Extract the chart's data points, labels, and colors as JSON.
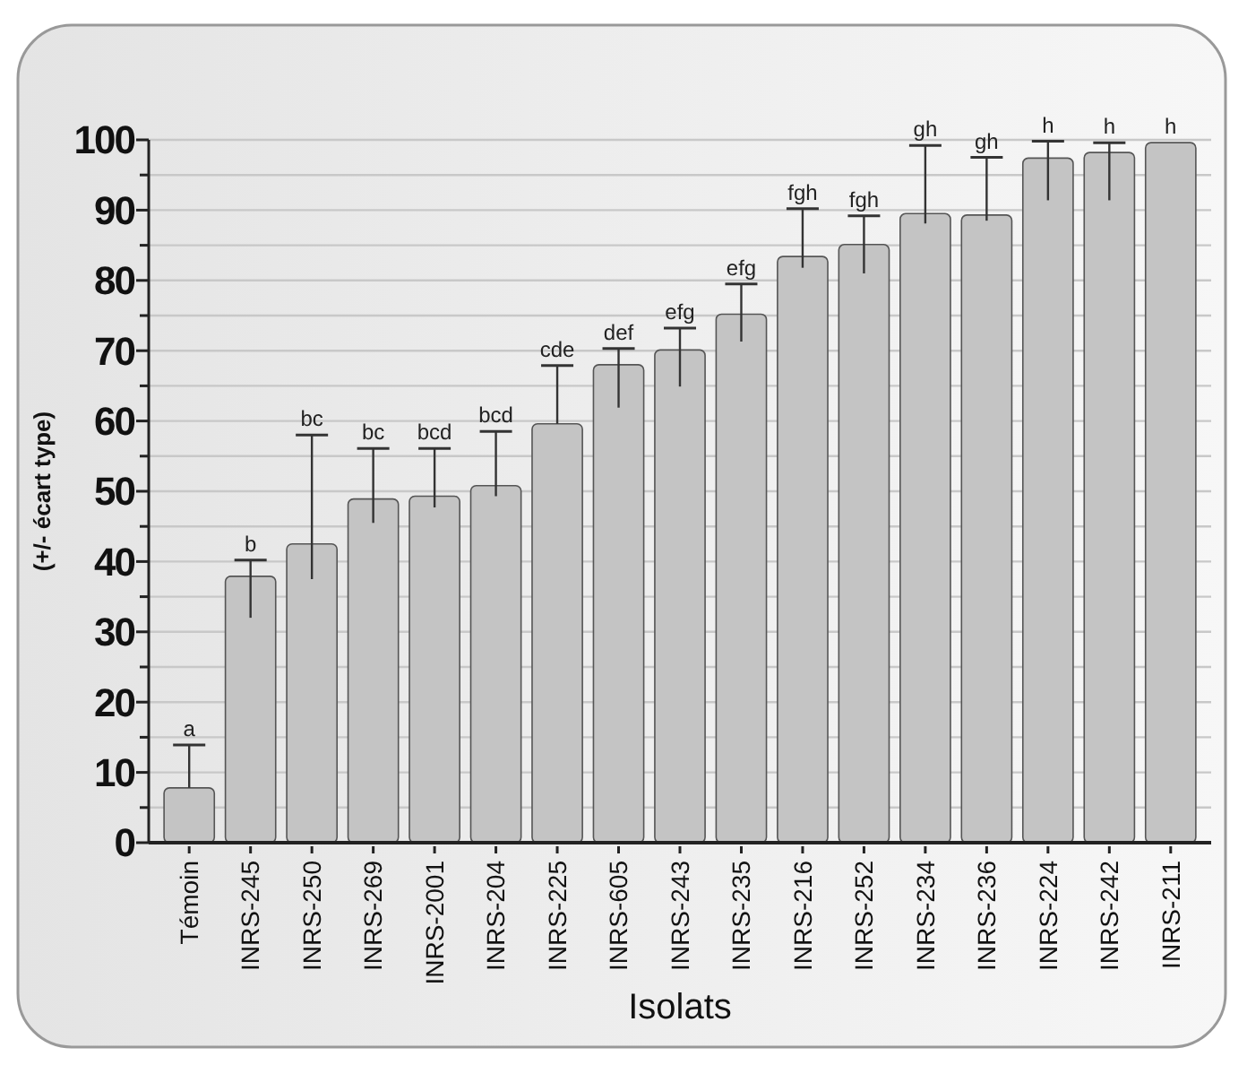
{
  "chart_data": {
    "type": "bar",
    "xlabel": "Isolats",
    "ylabel": "(+/- écart type)",
    "categories": [
      "Témoin",
      "INRS-245",
      "INRS-250",
      "INRS-269",
      "INRS-2001",
      "INRS-204",
      "INRS-225",
      "INRS-605",
      "INRS-243",
      "INRS-235",
      "INRS-216",
      "INRS-252",
      "INRS-234",
      "INRS-236",
      "INRS-224",
      "INRS-242",
      "INRS-211"
    ],
    "values": [
      7.8,
      37.9,
      42.5,
      48.9,
      49.3,
      50.8,
      59.6,
      68.0,
      70.1,
      75.2,
      83.4,
      85.1,
      89.5,
      89.3,
      97.4,
      98.2,
      99.6
    ],
    "errors": [
      [
        7.8,
        13.9
      ],
      [
        32.0,
        40.2
      ],
      [
        37.5,
        58.0
      ],
      [
        45.5,
        56.1
      ],
      [
        47.7,
        56.1
      ],
      [
        49.3,
        58.5
      ],
      [
        59.6,
        67.9
      ],
      [
        61.9,
        70.3
      ],
      [
        64.9,
        73.2
      ],
      [
        71.3,
        79.5
      ],
      [
        81.8,
        90.2
      ],
      [
        81.0,
        89.2
      ],
      [
        88.1,
        99.2
      ],
      [
        88.5,
        97.5
      ],
      [
        91.4,
        99.8
      ],
      [
        91.4,
        99.6
      ],
      null
    ],
    "color": "#c4c4c4",
    "ylim": [
      0,
      100
    ],
    "yticks": [
      0,
      {
        "value": 5,
        "label": null
      },
      10,
      {
        "value": 15,
        "label": null
      },
      20,
      {
        "value": 25,
        "label": null
      },
      30,
      {
        "value": 35,
        "label": null
      },
      40,
      {
        "value": 45,
        "label": null
      },
      50,
      {
        "value": 55,
        "label": null
      },
      60,
      {
        "value": 65,
        "label": null
      },
      70,
      {
        "value": 75,
        "label": null
      },
      80,
      {
        "value": 85,
        "label": null
      },
      90,
      {
        "value": 95,
        "label": null
      },
      100
    ],
    "grid": "y",
    "annotations": [
      {
        "text": "a",
        "x": "Témoin",
        "y": 13.9
      },
      {
        "text": "b",
        "x": "INRS-245",
        "y": 40.2
      },
      {
        "text": "bc",
        "x": "INRS-250",
        "y": 58.0
      },
      {
        "text": "bc",
        "x": "INRS-269",
        "y": 56.1
      },
      {
        "text": "bcd",
        "x": "INRS-2001",
        "y": 56.1
      },
      {
        "text": "bcd",
        "x": "INRS-204",
        "y": 58.5
      },
      {
        "text": "cde",
        "x": "INRS-225",
        "y": 67.9
      },
      {
        "text": "def",
        "x": "INRS-605",
        "y": 70.3
      },
      {
        "text": "efg",
        "x": "INRS-243",
        "y": 73.2
      },
      {
        "text": "efg",
        "x": "INRS-235",
        "y": 79.5
      },
      {
        "text": "fgh",
        "x": "INRS-216",
        "y": 90.2
      },
      {
        "text": "fgh",
        "x": "INRS-252",
        "y": 89.2
      },
      {
        "text": "gh",
        "x": "INRS-234",
        "y": 99.2
      },
      {
        "text": "gh",
        "x": "INRS-236",
        "y": 97.5
      },
      {
        "text": "h",
        "x": "INRS-224",
        "y": 99.8
      },
      {
        "text": "h",
        "x": "INRS-242",
        "y": 99.6
      },
      {
        "text": "h",
        "x": "INRS-211",
        "y": 99.6
      }
    ]
  }
}
